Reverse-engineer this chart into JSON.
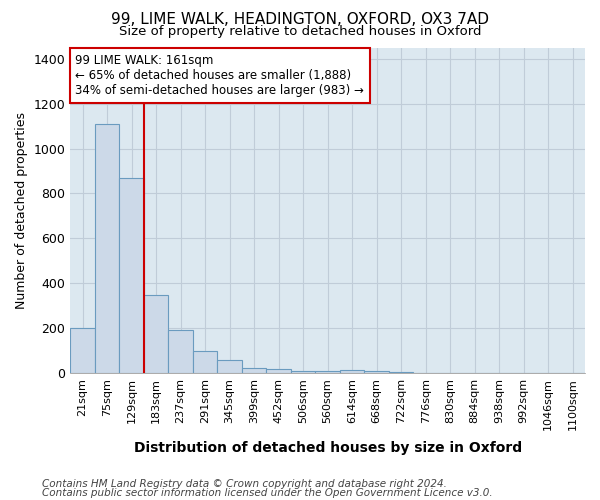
{
  "title1": "99, LIME WALK, HEADINGTON, OXFORD, OX3 7AD",
  "title2": "Size of property relative to detached houses in Oxford",
  "xlabel": "Distribution of detached houses by size in Oxford",
  "ylabel": "Number of detached properties",
  "categories": [
    "21sqm",
    "75sqm",
    "129sqm",
    "183sqm",
    "237sqm",
    "291sqm",
    "345sqm",
    "399sqm",
    "452sqm",
    "506sqm",
    "560sqm",
    "614sqm",
    "668sqm",
    "722sqm",
    "776sqm",
    "830sqm",
    "884sqm",
    "938sqm",
    "992sqm",
    "1046sqm",
    "1100sqm"
  ],
  "values": [
    200,
    1110,
    870,
    350,
    190,
    100,
    60,
    25,
    20,
    10,
    10,
    15,
    10,
    5,
    2,
    1,
    1,
    0,
    0,
    0,
    0
  ],
  "bar_color": "#ccd9e8",
  "bar_edge_color": "#6a9bbf",
  "ylim": [
    0,
    1450
  ],
  "yticks": [
    0,
    200,
    400,
    600,
    800,
    1000,
    1200,
    1400
  ],
  "vline_x_index": 2.5,
  "vline_color": "#cc0000",
  "annotation_text": "99 LIME WALK: 161sqm\n← 65% of detached houses are smaller (1,888)\n34% of semi-detached houses are larger (983) →",
  "annotation_box_color": "#ffffff",
  "annotation_border_color": "#cc0000",
  "fig_background_color": "#ffffff",
  "plot_bg_color": "#dce8f0",
  "grid_color": "#c0ccd8",
  "footer1": "Contains HM Land Registry data © Crown copyright and database right 2024.",
  "footer2": "Contains public sector information licensed under the Open Government Licence v3.0.",
  "title1_fontsize": 11,
  "title2_fontsize": 9.5,
  "xlabel_fontsize": 10,
  "ylabel_fontsize": 9,
  "tick_fontsize": 8,
  "annotation_fontsize": 8.5,
  "footer_fontsize": 7.5
}
